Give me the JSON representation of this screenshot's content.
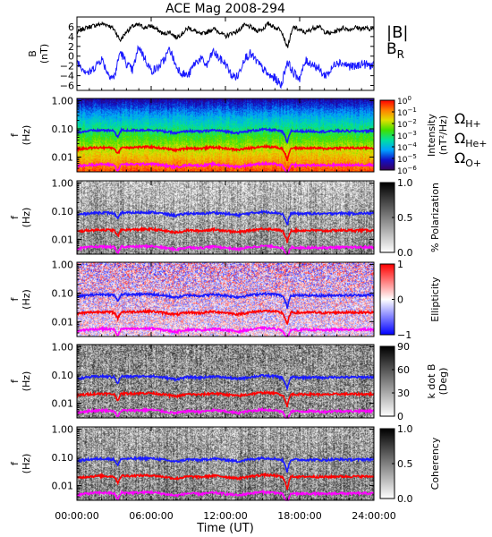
{
  "chart_data": {
    "title": "ACE Mag 2008-294",
    "type": "multi-panel",
    "xlabel": "Time (UT)",
    "x_ticks": [
      "00:00:00",
      "06:00:00",
      "12:00:00",
      "18:00:00",
      "24:00:00"
    ],
    "xlim_hours": [
      0,
      24
    ],
    "panels": [
      {
        "type": "line",
        "ylabel": "B (nT)",
        "ylabel_top": "B",
        "ylabel_unit": "(nT)",
        "ylim": [
          -7,
          8
        ],
        "y_ticks": [
          "6",
          "4",
          "2",
          "0",
          "−2",
          "−4",
          "−6"
        ],
        "y_tick_values": [
          6,
          4,
          2,
          0,
          -2,
          -4,
          -6
        ],
        "legend": [
          {
            "name": "|B|",
            "color": "#000000"
          },
          {
            "name": "B",
            "subscript": "R",
            "color": "#1a1aff"
          }
        ],
        "series": [
          {
            "name": "|B|",
            "color": "#000000",
            "x": [
              0,
              0.5,
              1,
              1.5,
              2,
              2.5,
              3,
              3.5,
              4,
              4.5,
              5,
              5.5,
              6,
              6.5,
              7,
              7.5,
              8,
              8.5,
              9,
              9.5,
              10,
              10.5,
              11,
              11.5,
              12,
              12.5,
              13,
              13.5,
              14,
              14.5,
              15,
              15.5,
              16,
              16.5,
              17,
              17.5,
              18,
              18.5,
              19,
              19.5,
              20,
              20.5,
              21,
              21.5,
              22,
              22.5,
              23,
              23.5,
              24
            ],
            "values": [
              4.8,
              5.6,
              6.0,
              6.3,
              6.6,
              6.4,
              5.5,
              3.2,
              5.0,
              6.1,
              6.4,
              5.8,
              6.2,
              5.4,
              4.5,
              5.0,
              3.8,
              4.6,
              5.8,
              5.2,
              4.4,
              4.9,
              5.6,
              5.0,
              4.0,
              4.7,
              5.1,
              6.3,
              6.0,
              5.2,
              5.5,
              6.7,
              5.8,
              5.5,
              1.8,
              6.0,
              5.3,
              4.8,
              5.6,
              6.2,
              5.0,
              4.6,
              5.2,
              5.8,
              5.4,
              5.9,
              5.6,
              5.7,
              5.5
            ]
          },
          {
            "name": "B_R",
            "color": "#1a1aff",
            "x": [
              0,
              0.5,
              1,
              1.5,
              2,
              2.5,
              3,
              3.5,
              4,
              4.5,
              5,
              5.5,
              6,
              6.5,
              7,
              7.5,
              8,
              8.5,
              9,
              9.5,
              10,
              10.5,
              11,
              11.5,
              12,
              12.5,
              13,
              13.5,
              14,
              14.5,
              15,
              15.5,
              16,
              16.5,
              17,
              17.5,
              18,
              18.5,
              19,
              19.5,
              20,
              20.5,
              21,
              21.5,
              22,
              22.5,
              23,
              23.5,
              24
            ],
            "values": [
              -1.0,
              -2.5,
              -3.5,
              -2.0,
              -0.5,
              -3.5,
              -4.5,
              1.0,
              -1.5,
              -3.0,
              2.0,
              -0.5,
              -3.0,
              -2.5,
              -1.0,
              1.5,
              -2.0,
              -3.5,
              -4.0,
              -1.5,
              -0.5,
              -2.0,
              1.0,
              -0.5,
              -1.5,
              -4.0,
              -4.2,
              -0.5,
              0.5,
              -1.0,
              -2.5,
              -4.0,
              -4.5,
              -6.0,
              -1.0,
              -3.5,
              -4.5,
              -1.0,
              -1.5,
              -2.5,
              -4.0,
              -3.0,
              -1.0,
              -1.5,
              -2.0,
              -2.2,
              -1.5,
              -1.8,
              -2.0
            ]
          }
        ]
      },
      {
        "type": "heatmap",
        "name": "intensity",
        "ylabel_top": "f",
        "ylabel_unit": "(Hz)",
        "y_scale": "log",
        "ylim": [
          0.003,
          1.2
        ],
        "y_ticks": [
          "1.00",
          "0.10",
          "0.01"
        ],
        "y_tick_values": [
          1.0,
          0.1,
          0.01
        ],
        "colorbar_label": "Intensity (nT²/Hz)",
        "colorbar_label_main": "Intensity",
        "colorbar_label_unit": "(nT²/Hz)",
        "colorbar_ticks": [
          {
            "base": "10",
            "exp": "0"
          },
          {
            "base": "10",
            "exp": "−1"
          },
          {
            "base": "10",
            "exp": "−2"
          },
          {
            "base": "10",
            "exp": "−3"
          },
          {
            "base": "10",
            "exp": "−4"
          },
          {
            "base": "10",
            "exp": "−5"
          },
          {
            "base": "10",
            "exp": "−6"
          }
        ],
        "colorbar_range_log10": [
          -6,
          0
        ],
        "colormap": [
          "#3a005a",
          "#1010c8",
          "#00a0ff",
          "#00e0a0",
          "#40e000",
          "#e0e000",
          "#ff8000",
          "#ff0000"
        ]
      },
      {
        "type": "heatmap",
        "name": "polarization",
        "ylabel_top": "f",
        "ylabel_unit": "(Hz)",
        "y_scale": "log",
        "ylim": [
          0.003,
          1.2
        ],
        "y_ticks": [
          "1.00",
          "0.10",
          "0.01"
        ],
        "y_tick_values": [
          1.0,
          0.1,
          0.01
        ],
        "colorbar_label": "% Polarization",
        "colorbar_ticks": [
          "1.0",
          "0.5",
          "0.0"
        ],
        "colorbar_range": [
          0,
          1
        ],
        "colormap": [
          "#ffffff",
          "#000000"
        ]
      },
      {
        "type": "heatmap",
        "name": "ellipticity",
        "ylabel_top": "f",
        "ylabel_unit": "(Hz)",
        "y_scale": "log",
        "ylim": [
          0.003,
          1.2
        ],
        "y_ticks": [
          "1.00",
          "0.10",
          "0.01"
        ],
        "y_tick_values": [
          1.0,
          0.1,
          0.01
        ],
        "colorbar_label": "Ellipticity",
        "colorbar_ticks": [
          "1",
          "0",
          "−1"
        ],
        "colorbar_range": [
          -1,
          1
        ],
        "colormap": [
          "#0000ff",
          "#ffffff",
          "#ff0000"
        ]
      },
      {
        "type": "heatmap",
        "name": "kdotb",
        "ylabel_top": "f",
        "ylabel_unit": "(Hz)",
        "y_scale": "log",
        "ylim": [
          0.003,
          1.2
        ],
        "y_ticks": [
          "1.00",
          "0.10",
          "0.01"
        ],
        "y_tick_values": [
          1.0,
          0.1,
          0.01
        ],
        "colorbar_label": "k dot B (Deg)",
        "colorbar_label_main": "k dot B",
        "colorbar_label_unit": "(Deg)",
        "colorbar_ticks": [
          "90",
          "60",
          "30",
          "0"
        ],
        "colorbar_range": [
          0,
          90
        ],
        "colormap": [
          "#ffffff",
          "#000000"
        ]
      },
      {
        "type": "heatmap",
        "name": "coherency",
        "ylabel_top": "f",
        "ylabel_unit": "(Hz)",
        "y_scale": "log",
        "ylim": [
          0.003,
          1.2
        ],
        "y_ticks": [
          "1.00",
          "0.10",
          "0.01"
        ],
        "y_tick_values": [
          1.0,
          0.1,
          0.01
        ],
        "colorbar_label": "Coherency",
        "colorbar_ticks": [
          "1.0",
          "0.5",
          "0.0"
        ],
        "colorbar_range": [
          0,
          1
        ],
        "colormap": [
          "#ffffff",
          "#000000"
        ]
      }
    ],
    "gyrofrequency_lines": [
      {
        "name": "ΩH+",
        "symbol": "Ω",
        "sub": "H+",
        "color": "#1a1aff",
        "ion_mass": 1,
        "hours": [
          0,
          1,
          2,
          3,
          3.3,
          3.6,
          4,
          5,
          6,
          7,
          8,
          9,
          10,
          11,
          12,
          13,
          14,
          15,
          16,
          16.6,
          17,
          17.3,
          18,
          19,
          20,
          21,
          22,
          23,
          24
        ],
        "freq_hz": [
          0.075,
          0.085,
          0.09,
          0.085,
          0.05,
          0.09,
          0.088,
          0.09,
          0.092,
          0.082,
          0.07,
          0.085,
          0.08,
          0.09,
          0.082,
          0.072,
          0.085,
          0.095,
          0.09,
          0.08,
          0.03,
          0.085,
          0.082,
          0.083,
          0.08,
          0.085,
          0.083,
          0.084,
          0.085
        ]
      },
      {
        "name": "ΩHe+",
        "symbol": "Ω",
        "sub": "He+",
        "color": "#ff0000",
        "ion_mass": 4,
        "hours": [
          0,
          1,
          2,
          3,
          3.3,
          3.6,
          4,
          5,
          6,
          7,
          8,
          9,
          10,
          11,
          12,
          13,
          14,
          15,
          16,
          16.6,
          17,
          17.3,
          18,
          19,
          20,
          21,
          22,
          23,
          24
        ],
        "freq_hz": [
          0.019,
          0.021,
          0.022,
          0.021,
          0.0125,
          0.022,
          0.022,
          0.0225,
          0.023,
          0.0205,
          0.0175,
          0.021,
          0.02,
          0.0225,
          0.0205,
          0.018,
          0.021,
          0.024,
          0.0225,
          0.02,
          0.0075,
          0.021,
          0.0205,
          0.021,
          0.02,
          0.021,
          0.021,
          0.021,
          0.021
        ]
      },
      {
        "name": "ΩO+",
        "symbol": "Ω",
        "sub": "O+",
        "color": "#ff00ff",
        "ion_mass": 16,
        "hours": [
          0,
          1,
          2,
          3,
          3.3,
          3.6,
          4,
          5,
          6,
          7,
          8,
          9,
          10,
          11,
          12,
          13,
          14,
          15,
          16,
          16.6,
          17,
          17.3,
          18,
          19,
          20,
          21,
          22,
          23,
          24
        ],
        "freq_hz": [
          0.0047,
          0.0053,
          0.0056,
          0.0053,
          0.0031,
          0.0056,
          0.0055,
          0.0056,
          0.0058,
          0.0051,
          0.0044,
          0.0053,
          0.005,
          0.0056,
          0.0051,
          0.0045,
          0.0053,
          0.0059,
          0.0056,
          0.005,
          0.0019,
          0.0053,
          0.0051,
          0.0052,
          0.005,
          0.0053,
          0.0052,
          0.0053,
          0.0053
        ]
      }
    ]
  }
}
